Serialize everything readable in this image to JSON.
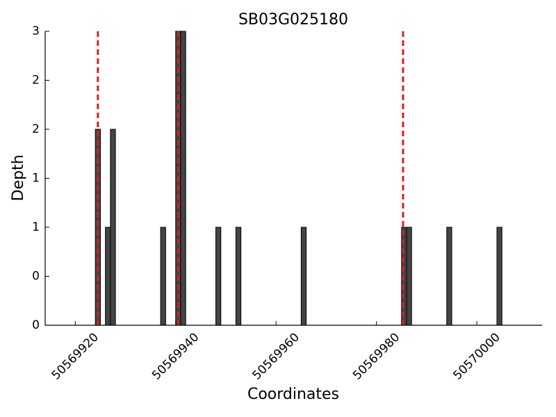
{
  "chart_data": {
    "type": "bar",
    "title": "SB03G025180",
    "x_label": "Coordinates",
    "y_label": "Depth",
    "x": [
      50569924.5,
      50569926.5,
      50569927.5,
      50569937.5,
      50569940.5,
      50569941.5,
      50569948.5,
      50569952.5,
      50569965.5,
      50569985.5,
      50569986.5,
      50569994.5,
      50570004.5
    ],
    "values": [
      2,
      1,
      2,
      1,
      3,
      3,
      1,
      1,
      1,
      1,
      1,
      1,
      1
    ],
    "color": "#444444",
    "vlines": [
      50569924.5,
      50569940.5,
      50569985.3
    ],
    "vline_color": "#e31a1c",
    "xlim": [
      50569914,
      50570013
    ],
    "xticks": [
      50569920,
      50569940,
      50569960,
      50569980,
      50570000
    ],
    "ylim": [
      0,
      3
    ],
    "yticks": [
      0,
      {
        "value": 0.5,
        "label": "0"
      },
      1,
      {
        "value": 1.5,
        "label": "1"
      },
      2,
      {
        "value": 2.5,
        "label": "2"
      },
      3
    ]
  }
}
